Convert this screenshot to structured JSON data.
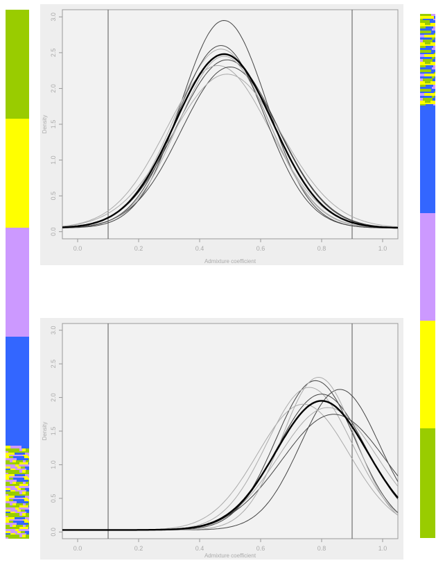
{
  "colors": {
    "green": "#99cc00",
    "yellow": "#ffff00",
    "purple": "#cc99ff",
    "blue": "#3366ff",
    "panel_bg": "#f2f2f2",
    "curve_thin": "#888888",
    "curve_mean": "#000000"
  },
  "left_bar": {
    "segments": [
      {
        "color": "green",
        "fraction": 0.206
      },
      {
        "color": "yellow",
        "fraction": 0.206
      },
      {
        "color": "purple",
        "fraction": 0.206
      },
      {
        "color": "blue",
        "fraction": 0.206
      },
      {
        "color": "mixed",
        "fraction": 0.176
      }
    ]
  },
  "right_bar": {
    "segments": [
      {
        "color": "mixed",
        "fraction": 0.175
      },
      {
        "color": "blue",
        "fraction": 0.205
      },
      {
        "color": "purple",
        "fraction": 0.205
      },
      {
        "color": "yellow",
        "fraction": 0.205
      },
      {
        "color": "green",
        "fraction": 0.21
      }
    ]
  },
  "chart_data": [
    {
      "type": "line",
      "xlabel": "Admixture coefficient",
      "ylabel": "Density",
      "xlim": [
        -0.05,
        1.05
      ],
      "ylim": [
        -0.1,
        3.1
      ],
      "xticks": [
        "0.0",
        "0.2",
        "0.4",
        "0.6",
        "0.8",
        "1.0"
      ],
      "xtick_values": [
        0,
        0.2,
        0.4,
        0.6,
        0.8,
        1.0
      ],
      "yticks": [
        "0.0",
        "0.5",
        "1.0",
        "1.5",
        "2.0",
        "2.5",
        "3.0"
      ],
      "ytick_values": [
        0,
        0.5,
        1.0,
        1.5,
        2.0,
        2.5,
        3.0
      ],
      "vlines": [
        0.1,
        0.9
      ],
      "grid": false,
      "mean_curve": {
        "peak_x": 0.48,
        "peak_y": 2.48,
        "sd": 0.16,
        "baseline": 0.05
      },
      "replicate_curves": [
        {
          "peak_x": 0.48,
          "peak_y": 2.95,
          "sd": 0.14
        },
        {
          "peak_x": 0.47,
          "peak_y": 2.55,
          "sd": 0.155
        },
        {
          "peak_x": 0.49,
          "peak_y": 2.4,
          "sd": 0.165
        },
        {
          "peak_x": 0.46,
          "peak_y": 2.32,
          "sd": 0.17
        },
        {
          "peak_x": 0.5,
          "peak_y": 2.3,
          "sd": 0.16
        },
        {
          "peak_x": 0.48,
          "peak_y": 2.45,
          "sd": 0.15
        },
        {
          "peak_x": 0.47,
          "peak_y": 2.6,
          "sd": 0.145
        },
        {
          "peak_x": 0.49,
          "peak_y": 2.2,
          "sd": 0.18
        }
      ]
    },
    {
      "type": "line",
      "xlabel": "Admixture coefficient",
      "ylabel": "Density",
      "xlim": [
        -0.05,
        1.05
      ],
      "ylim": [
        -0.1,
        3.1
      ],
      "xticks": [
        "0.0",
        "0.2",
        "0.4",
        "0.6",
        "0.8",
        "1.0"
      ],
      "xtick_values": [
        0,
        0.2,
        0.4,
        0.6,
        0.8,
        1.0
      ],
      "yticks": [
        "0.0",
        "0.5",
        "1.0",
        "1.5",
        "2.0",
        "2.5",
        "3.0"
      ],
      "ytick_values": [
        0,
        0.5,
        1.0,
        1.5,
        2.0,
        2.5,
        3.0
      ],
      "vlines": [
        0.1,
        0.9
      ],
      "grid": false,
      "mean_curve": {
        "peak_x": 0.8,
        "peak_y": 1.95,
        "sd": 0.15,
        "baseline": 0.03
      },
      "replicate_curves": [
        {
          "peak_x": 0.78,
          "peak_y": 2.25,
          "sd": 0.13
        },
        {
          "peak_x": 0.76,
          "peak_y": 2.15,
          "sd": 0.14
        },
        {
          "peak_x": 0.86,
          "peak_y": 2.12,
          "sd": 0.13
        },
        {
          "peak_x": 0.82,
          "peak_y": 1.85,
          "sd": 0.16
        },
        {
          "peak_x": 0.8,
          "peak_y": 2.05,
          "sd": 0.145
        },
        {
          "peak_x": 0.74,
          "peak_y": 1.9,
          "sd": 0.15
        },
        {
          "peak_x": 0.84,
          "peak_y": 1.75,
          "sd": 0.17
        },
        {
          "peak_x": 0.79,
          "peak_y": 2.3,
          "sd": 0.12
        }
      ]
    }
  ]
}
